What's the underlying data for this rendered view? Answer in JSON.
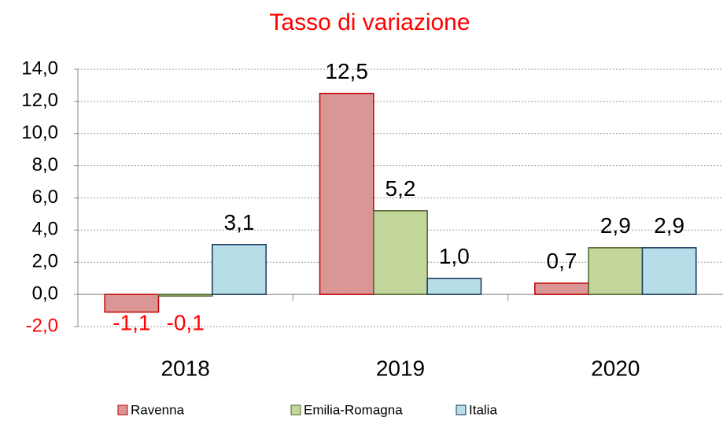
{
  "chart_data": {
    "type": "bar",
    "title": "Tasso di variazione",
    "categories": [
      "2018",
      "2019",
      "2020"
    ],
    "series": [
      {
        "name": "Ravenna",
        "color": "#d99694",
        "stroke": "#c00000",
        "values": [
          -1.1,
          12.5,
          0.7
        ],
        "value_labels": [
          "-1,1",
          "12,5",
          "0,7"
        ]
      },
      {
        "name": "Emilia-Romagna",
        "color": "#c3d69b",
        "stroke": "#4f6228",
        "values": [
          -0.1,
          5.2,
          2.9
        ],
        "value_labels": [
          "-0,1",
          "5,2",
          "2,9"
        ]
      },
      {
        "name": "Italia",
        "color": "#b7dee8",
        "stroke": "#17375e",
        "values": [
          3.1,
          1.0,
          2.9
        ],
        "value_labels": [
          "3,1",
          "1,0",
          "2,9"
        ]
      }
    ],
    "ylim": [
      -2,
      14
    ],
    "yticks": [
      {
        "value": -2,
        "label": "-2,0"
      },
      {
        "value": 0,
        "label": "0,0"
      },
      {
        "value": 2,
        "label": "2,0"
      },
      {
        "value": 4,
        "label": "4,0"
      },
      {
        "value": 6,
        "label": "6,0"
      },
      {
        "value": 8,
        "label": "8,0"
      },
      {
        "value": 10,
        "label": "10,0"
      },
      {
        "value": 12,
        "label": "12,0"
      },
      {
        "value": 14,
        "label": "14,0"
      }
    ],
    "grid": true,
    "legend": "bottom"
  }
}
